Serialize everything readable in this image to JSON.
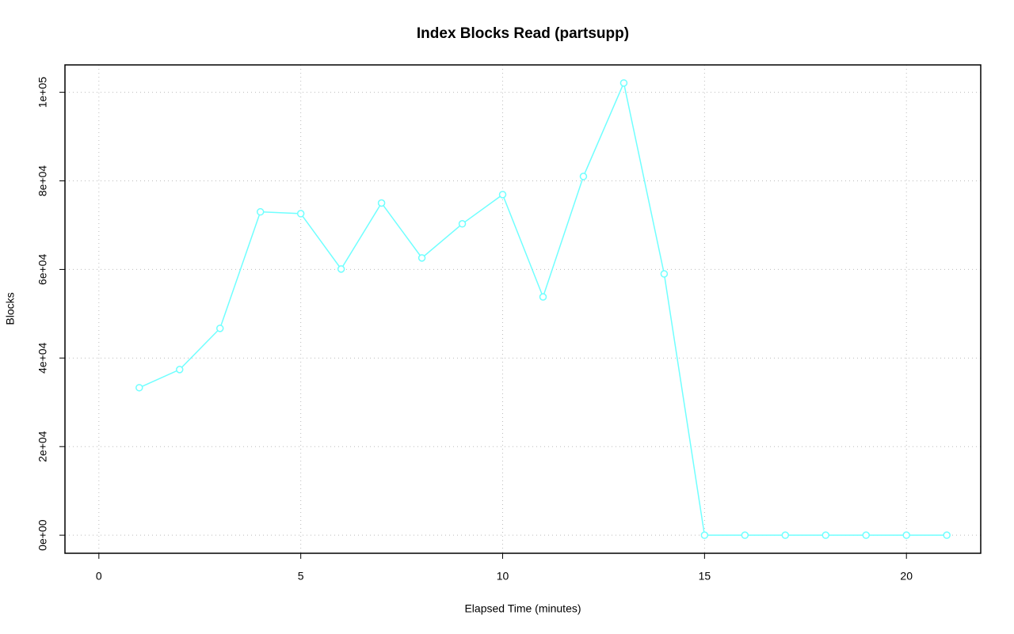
{
  "chart_data": {
    "type": "line",
    "title": "Index Blocks Read (partsupp)",
    "xlabel": "Elapsed Time (minutes)",
    "ylabel": "Blocks",
    "x": [
      1,
      2,
      3,
      4,
      5,
      6,
      7,
      8,
      9,
      10,
      11,
      12,
      13,
      14,
      15,
      16,
      17,
      18,
      19,
      20,
      21
    ],
    "series": [
      {
        "name": "partsupp",
        "color": "#70ffff",
        "values": [
          33300,
          37400,
          46700,
          73000,
          72600,
          60100,
          75000,
          62600,
          70300,
          76900,
          53800,
          81000,
          102100,
          59000,
          0,
          0,
          0,
          0,
          0,
          0,
          0
        ]
      }
    ],
    "xlim": [
      -0.84,
      21.84
    ],
    "xticks": [
      0,
      5,
      10,
      15,
      20
    ],
    "ylim": [
      -4084,
      106184
    ],
    "yticks": [
      {
        "value": 0,
        "label": "0e+00"
      },
      {
        "value": 20000,
        "label": "2e+04"
      },
      {
        "value": 40000,
        "label": "4e+04"
      },
      {
        "value": 60000,
        "label": "6e+04"
      },
      {
        "value": 80000,
        "label": "8e+04"
      },
      {
        "value": 100000,
        "label": "1e+05"
      }
    ],
    "grid": true
  }
}
